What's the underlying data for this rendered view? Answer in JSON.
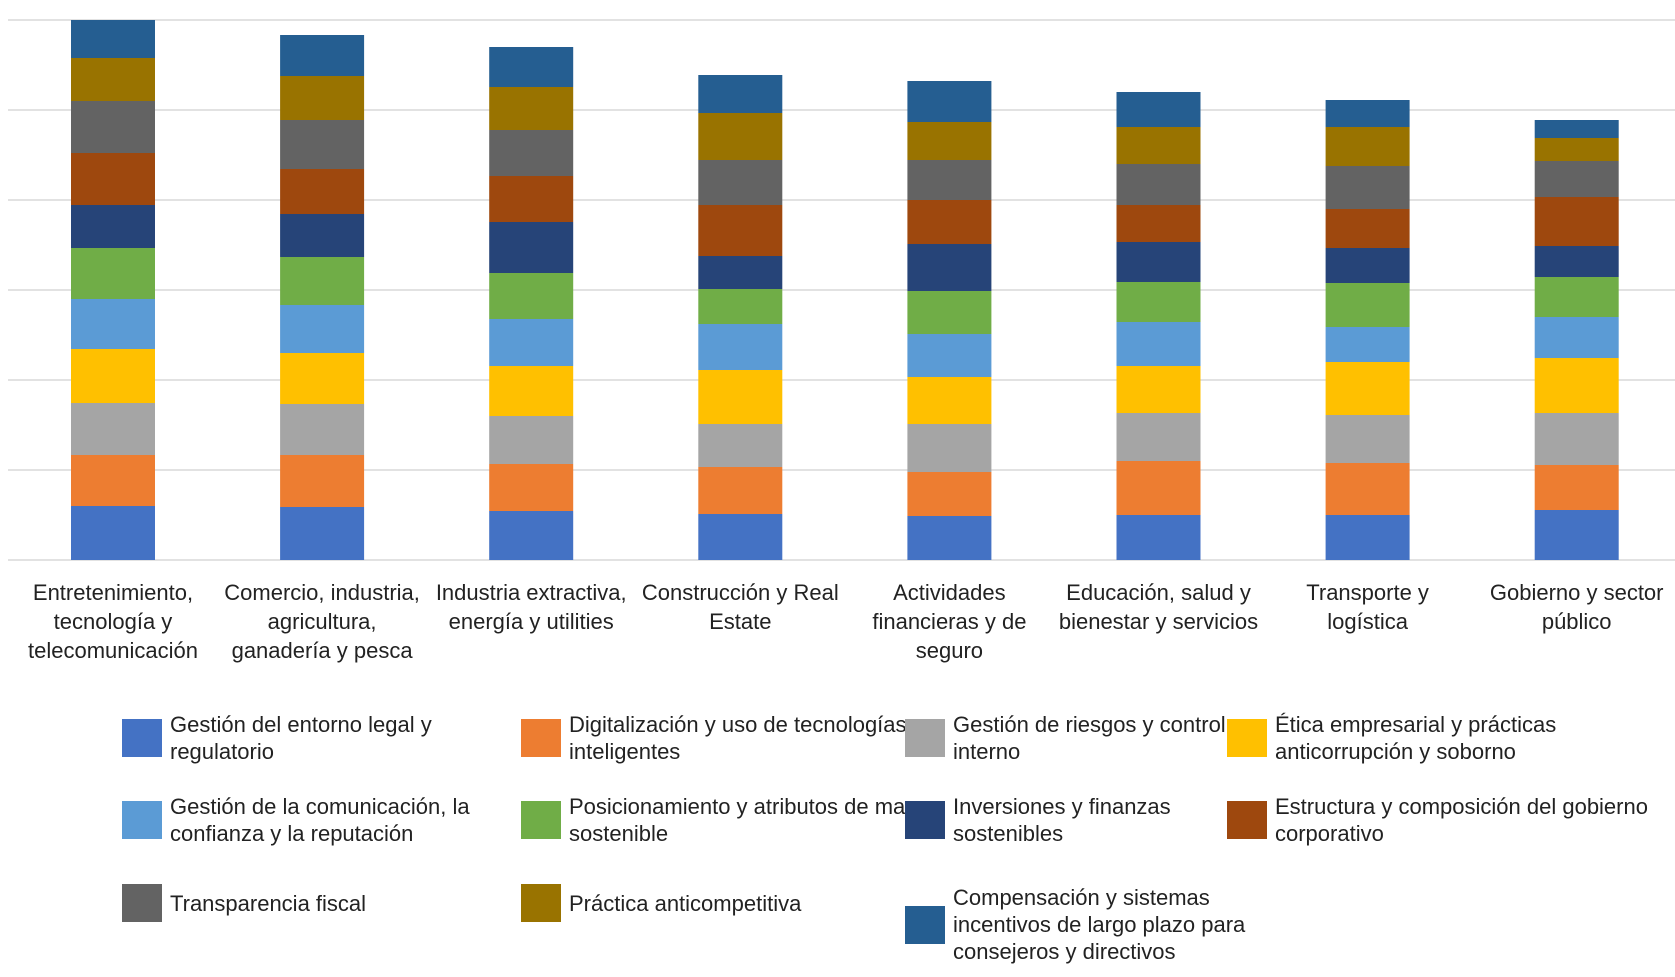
{
  "chart_data": {
    "type": "bar",
    "stacked": true,
    "title": "",
    "xlabel": "",
    "ylabel": "",
    "grid": true,
    "legend_position": "bottom",
    "categories": [
      "Entretenimiento, tecnología y telecomunicación",
      "Comercio, industria, agricultura, ganadería y pesca",
      "Industria extractiva, energía y utilities",
      "Construcción y Real Estate",
      "Actividades financieras y de seguro",
      "Educación, salud y bienestar y servicios",
      "Transporte y logística",
      "Gobierno y sector público"
    ],
    "series": [
      {
        "name": "Gestión del entorno legal y regulatorio",
        "color": "#4472C4",
        "values": [
          54,
          53,
          49,
          46,
          44,
          45,
          45,
          50
        ]
      },
      {
        "name": "Digitalización y uso de tecnologías inteligentes",
        "color": "#ED7D31",
        "values": [
          51,
          52,
          47,
          47,
          44,
          54,
          52,
          45
        ]
      },
      {
        "name": "Gestión de riesgos y control interno",
        "color": "#A5A5A5",
        "values": [
          52,
          51,
          48,
          43,
          48,
          48,
          48,
          52
        ]
      },
      {
        "name": "Ética empresarial y prácticas anticorrupción y soborno",
        "color": "#FFC000",
        "values": [
          54,
          51,
          50,
          54,
          47,
          47,
          53,
          55
        ]
      },
      {
        "name": "Gestión de la comunicación, la confianza y la reputación",
        "color": "#5B9BD5",
        "values": [
          50,
          48,
          47,
          46,
          43,
          44,
          35,
          41
        ]
      },
      {
        "name": "Posicionamiento y atributos de marca sostenible",
        "color": "#70AD47",
        "values": [
          51,
          48,
          46,
          35,
          43,
          40,
          44,
          40
        ]
      },
      {
        "name": "Inversiones y finanzas sostenibles",
        "color": "#264478",
        "values": [
          43,
          43,
          51,
          33,
          47,
          40,
          35,
          31
        ]
      },
      {
        "name": "Estructura y composición del gobierno corporativo",
        "color": "#9E480E",
        "values": [
          52,
          45,
          46,
          51,
          44,
          37,
          39,
          49
        ]
      },
      {
        "name": "Transparencia fiscal",
        "color": "#636363",
        "values": [
          52,
          49,
          46,
          45,
          40,
          41,
          43,
          36
        ]
      },
      {
        "name": "Práctica anticompetitiva",
        "color": "#997300",
        "values": [
          43,
          44,
          43,
          47,
          38,
          37,
          39,
          23
        ]
      },
      {
        "name": "Compensación y sistemas incentivos de largo plazo para consejeros y directivos",
        "color": "#255E91",
        "values": [
          38,
          41,
          40,
          38,
          41,
          35,
          27,
          18
        ]
      }
    ],
    "ylim": [
      0,
      550
    ],
    "gridlines": [
      0,
      90,
      180,
      270,
      360,
      450,
      540
    ]
  }
}
